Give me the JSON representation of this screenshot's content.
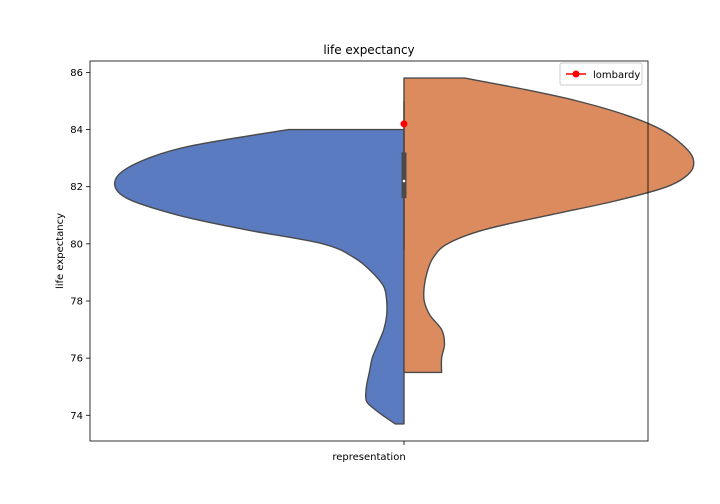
{
  "chart_data": {
    "type": "violin",
    "title": "life expectancy",
    "xlabel": "",
    "ylabel": "life expectancy",
    "categories": [
      "representation"
    ],
    "ylim": [
      73.1,
      86.4
    ],
    "yticks": [
      74,
      76,
      78,
      80,
      82,
      84,
      86
    ],
    "grid": false,
    "legend_position": "top-right",
    "split": true,
    "sides": [
      {
        "side": "left",
        "color": "#5b7bc1",
        "range": [
          73.7,
          84.0
        ],
        "profile": [
          [
            84.0,
            0.4
          ],
          [
            83.4,
            0.75
          ],
          [
            82.8,
            0.93
          ],
          [
            82.2,
            1.0
          ],
          [
            81.6,
            0.96
          ],
          [
            81.0,
            0.78
          ],
          [
            80.5,
            0.55
          ],
          [
            80.0,
            0.28
          ],
          [
            79.5,
            0.17
          ],
          [
            79.0,
            0.11
          ],
          [
            78.5,
            0.07
          ],
          [
            78.0,
            0.06
          ],
          [
            77.5,
            0.06
          ],
          [
            77.0,
            0.07
          ],
          [
            76.5,
            0.09
          ],
          [
            76.0,
            0.11
          ],
          [
            75.5,
            0.12
          ],
          [
            75.0,
            0.13
          ],
          [
            74.5,
            0.13
          ],
          [
            74.2,
            0.1
          ],
          [
            73.9,
            0.06
          ],
          [
            73.7,
            0.03
          ]
        ]
      },
      {
        "side": "right",
        "color": "#dc8b5f",
        "range": [
          75.5,
          85.8
        ],
        "profile": [
          [
            85.8,
            0.21
          ],
          [
            85.4,
            0.42
          ],
          [
            85.0,
            0.6
          ],
          [
            84.5,
            0.77
          ],
          [
            84.0,
            0.89
          ],
          [
            83.5,
            0.96
          ],
          [
            83.0,
            1.0
          ],
          [
            82.5,
            0.99
          ],
          [
            82.0,
            0.91
          ],
          [
            81.5,
            0.73
          ],
          [
            81.0,
            0.5
          ],
          [
            80.5,
            0.28
          ],
          [
            80.0,
            0.15
          ],
          [
            79.5,
            0.1
          ],
          [
            79.0,
            0.08
          ],
          [
            78.5,
            0.07
          ],
          [
            78.0,
            0.07
          ],
          [
            77.5,
            0.09
          ],
          [
            77.0,
            0.13
          ],
          [
            76.5,
            0.14
          ],
          [
            76.0,
            0.13
          ],
          [
            75.5,
            0.13
          ]
        ]
      }
    ],
    "box": {
      "q1": 81.6,
      "median": 82.2,
      "q3": 83.2,
      "whisker_low": 79.8,
      "whisker_high": 85.0
    },
    "series": [
      {
        "name": "lombardy",
        "type": "marker",
        "x": "representation",
        "y": 84.2,
        "color": "#ff0000"
      }
    ]
  }
}
